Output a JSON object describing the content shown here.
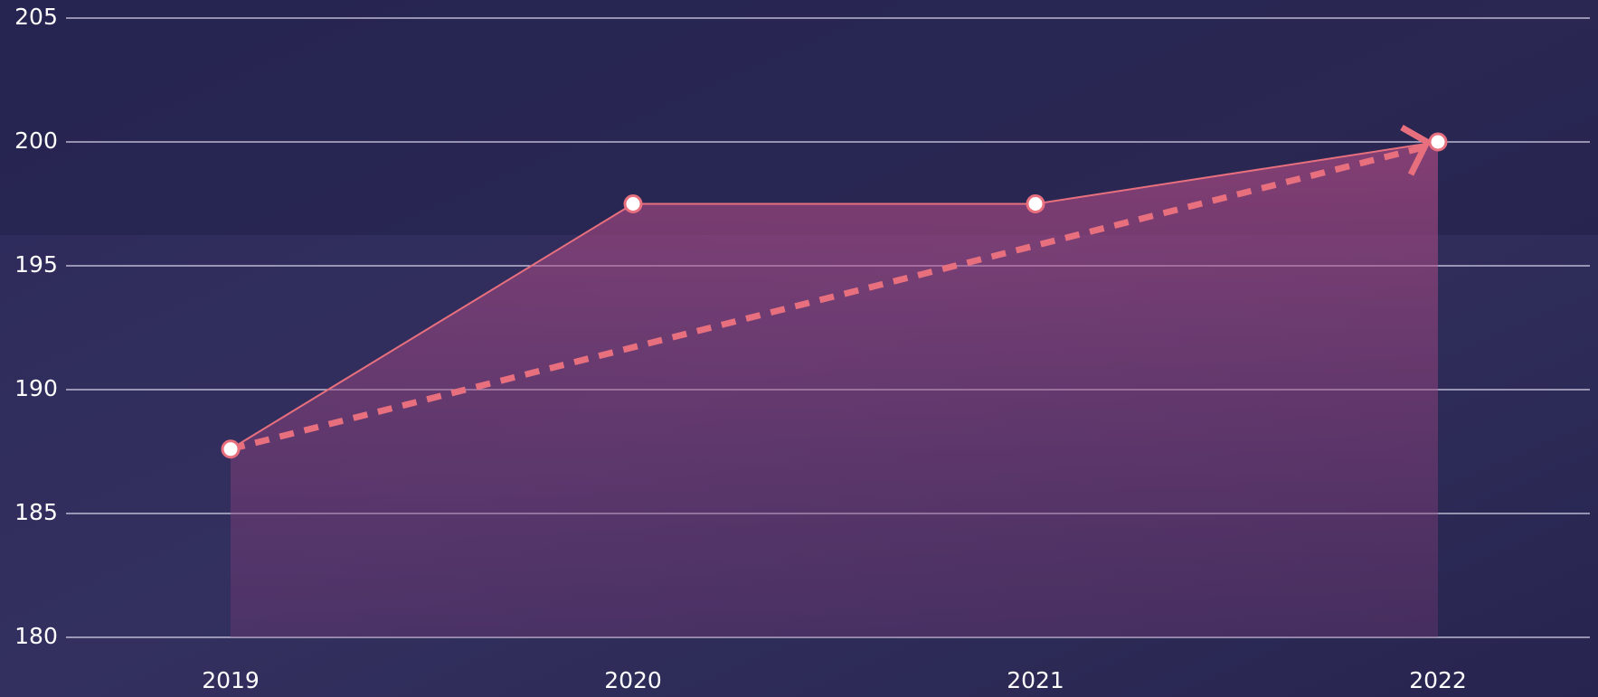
{
  "chart_data": {
    "type": "area",
    "categories": [
      "2019",
      "2020",
      "2021",
      "2022"
    ],
    "series": [
      {
        "color": "#e8707e",
        "values": [
          187.6,
          197.5,
          197.5,
          200
        ]
      }
    ],
    "ylim": [
      180,
      205
    ],
    "yticks": [
      180,
      185,
      190,
      195,
      200,
      205
    ],
    "grid": true
  }
}
